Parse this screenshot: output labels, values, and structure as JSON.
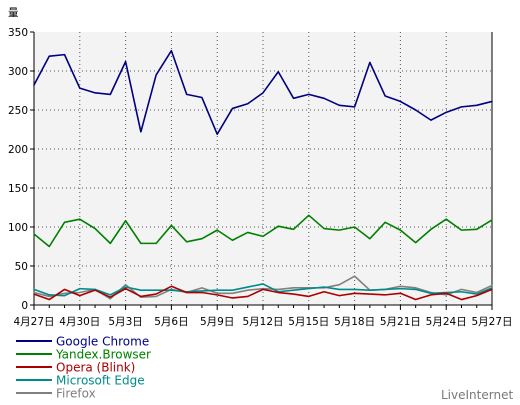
{
  "chart_data": {
    "type": "line",
    "y_unit": "量",
    "ylim": [
      0,
      350
    ],
    "y_ticks": [
      "0",
      "50",
      "100",
      "150",
      "200",
      "250",
      "300",
      "350"
    ],
    "grid": true,
    "x_categories": [
      "4月27日",
      "4月28日",
      "4月29日",
      "4月30日",
      "5月1日",
      "5月2日",
      "5月3日",
      "5月4日",
      "5月5日",
      "5月6日",
      "5月7日",
      "5月8日",
      "5月9日",
      "5月10日",
      "5月11日",
      "5月12日",
      "5月13日",
      "5月14日",
      "5月15日",
      "5月16日",
      "5月17日",
      "5月18日",
      "5月19日",
      "5月20日",
      "5月21日",
      "5月22日",
      "5月23日",
      "5月24日",
      "5月25日",
      "5月26日",
      "5月27日"
    ],
    "x_tick_labels": [
      "4月27日",
      "4月30日",
      "5月3日",
      "5月6日",
      "5月9日",
      "5月12日",
      "5月15日",
      "5月18日",
      "5月21日",
      "5月24日",
      "5月27日"
    ],
    "legend_position": "bottom-left",
    "series": [
      {
        "name": "Google Chrome",
        "color": "#000080",
        "values": [
          282,
          319,
          321,
          278,
          272,
          270,
          312,
          222,
          295,
          326,
          270,
          266,
          219,
          252,
          258,
          272,
          299,
          265,
          270,
          265,
          256,
          254,
          311,
          268,
          261,
          250,
          237,
          247,
          254,
          256,
          261
        ]
      },
      {
        "name": "Yandex.Browser",
        "color": "#008000",
        "values": [
          91,
          75,
          106,
          110,
          98,
          79,
          108,
          79,
          79,
          102,
          81,
          85,
          96,
          83,
          93,
          88,
          101,
          97,
          115,
          98,
          96,
          100,
          85,
          106,
          96,
          80,
          97,
          110,
          96,
          97,
          109
        ]
      },
      {
        "name": "Opera (Blink)",
        "color": "#aa0000",
        "values": [
          14,
          7,
          20,
          12,
          19,
          10,
          21,
          11,
          14,
          24,
          16,
          16,
          13,
          9,
          11,
          20,
          16,
          14,
          11,
          17,
          12,
          15,
          14,
          13,
          15,
          7,
          13,
          15,
          7,
          12,
          20
        ]
      },
      {
        "name": "Microsoft Edge",
        "color": "#008b8b",
        "values": [
          20,
          13,
          12,
          21,
          20,
          13,
          23,
          19,
          19,
          19,
          17,
          18,
          19,
          19,
          23,
          27,
          17,
          19,
          21,
          23,
          20,
          20,
          19,
          20,
          21,
          20,
          15,
          16,
          17,
          14,
          22
        ]
      },
      {
        "name": "Firefox",
        "color": "#808080",
        "values": [
          16,
          11,
          15,
          16,
          20,
          8,
          26,
          10,
          11,
          20,
          16,
          22,
          15,
          15,
          19,
          21,
          20,
          22,
          22,
          22,
          26,
          37,
          19,
          20,
          24,
          22,
          16,
          13,
          20,
          16,
          25
        ]
      }
    ]
  },
  "footer": {
    "brand": "LiveInternet"
  }
}
